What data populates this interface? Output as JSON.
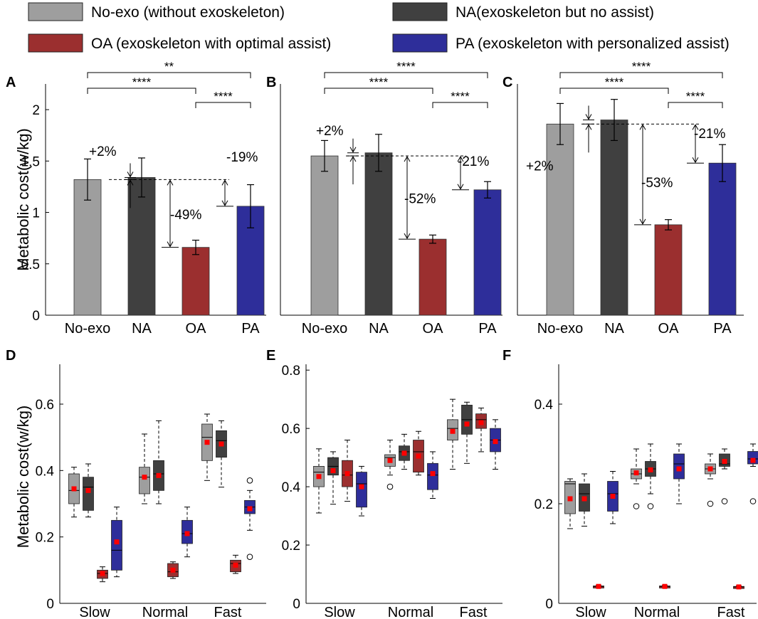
{
  "legend": [
    {
      "label": "No-exo (without exoskeleton)",
      "color": "#9e9e9e"
    },
    {
      "label": "NA(exoskeleton but no assist)",
      "color": "#404040"
    },
    {
      "label": "OA (exoskeleton with optimal assist)",
      "color": "#9b2f2f"
    },
    {
      "label": "PA (exoskeleton with personalized assist)",
      "color": "#2e2e9a"
    }
  ],
  "colors": {
    "noexo": "#9e9e9e",
    "na": "#404040",
    "oa": "#9b2f2f",
    "pa": "#2e2e9a",
    "mean_marker": "#ff0000"
  },
  "chart_data": [
    {
      "panel": "A",
      "type": "bar",
      "categories": [
        "No-exo",
        "NA",
        "OA",
        "PA"
      ],
      "values": [
        1.32,
        1.34,
        0.66,
        1.06
      ],
      "errors": [
        0.2,
        0.19,
        0.07,
        0.21
      ],
      "ylabel": "Metabolic cost(w/kg)",
      "ylim": [
        0,
        2.25
      ],
      "yticks": [
        0,
        0.5,
        1,
        1.5,
        2
      ],
      "significance": [
        {
          "from": 0,
          "to": 3,
          "label": "**"
        },
        {
          "from": 0,
          "to": 2,
          "label": "****"
        },
        {
          "from": 2,
          "to": 3,
          "label": "****"
        }
      ],
      "annotations": [
        {
          "bar": 1,
          "label": "+2%"
        },
        {
          "bar": 2,
          "label": "-49%"
        },
        {
          "bar": 3,
          "label": "-19%"
        }
      ]
    },
    {
      "panel": "B",
      "type": "bar",
      "categories": [
        "No-exo",
        "NA",
        "OA",
        "PA"
      ],
      "values": [
        1.55,
        1.58,
        0.74,
        1.22
      ],
      "errors": [
        0.15,
        0.18,
        0.04,
        0.08
      ],
      "ylabel": "",
      "ylim": [
        0,
        2.25
      ],
      "yticks": [],
      "significance": [
        {
          "from": 0,
          "to": 3,
          "label": "****"
        },
        {
          "from": 0,
          "to": 2,
          "label": "****"
        },
        {
          "from": 2,
          "to": 3,
          "label": "****"
        }
      ],
      "annotations": [
        {
          "bar": 1,
          "label": "+2%"
        },
        {
          "bar": 2,
          "label": "-52%"
        },
        {
          "bar": 3,
          "label": "-21%"
        }
      ]
    },
    {
      "panel": "C",
      "type": "bar",
      "categories": [
        "No-exo",
        "NA",
        "OA",
        "PA"
      ],
      "values": [
        1.86,
        1.9,
        0.88,
        1.48
      ],
      "errors": [
        0.2,
        0.2,
        0.05,
        0.18
      ],
      "ylabel": "",
      "ylim": [
        0,
        2.25
      ],
      "yticks": [],
      "significance": [
        {
          "from": 0,
          "to": 3,
          "label": "****"
        },
        {
          "from": 0,
          "to": 2,
          "label": "****"
        },
        {
          "from": 2,
          "to": 3,
          "label": "****"
        }
      ],
      "annotations": [
        {
          "bar": 1,
          "label": "+2%"
        },
        {
          "bar": 2,
          "label": "-53%"
        },
        {
          "bar": 3,
          "label": "-21%"
        }
      ]
    },
    {
      "panel": "D",
      "type": "box",
      "categories": [
        "Slow",
        "Normal",
        "Fast"
      ],
      "ylabel": "Metabolic cost(w/kg)",
      "ylim": [
        0,
        0.72
      ],
      "yticks": [
        0,
        0.2,
        0.4,
        0.6
      ],
      "series": [
        {
          "name": "No-exo",
          "groups": [
            {
              "min": 0.26,
              "q1": 0.3,
              "median": 0.34,
              "q3": 0.39,
              "max": 0.41,
              "mean": 0.345,
              "outliers": []
            },
            {
              "min": 0.3,
              "q1": 0.33,
              "median": 0.38,
              "q3": 0.41,
              "max": 0.51,
              "mean": 0.38,
              "outliers": []
            },
            {
              "min": 0.37,
              "q1": 0.43,
              "median": 0.5,
              "q3": 0.54,
              "max": 0.57,
              "mean": 0.485,
              "outliers": []
            }
          ]
        },
        {
          "name": "NA",
          "groups": [
            {
              "min": 0.26,
              "q1": 0.28,
              "median": 0.35,
              "q3": 0.38,
              "max": 0.42,
              "mean": 0.34,
              "outliers": []
            },
            {
              "min": 0.3,
              "q1": 0.34,
              "median": 0.39,
              "q3": 0.43,
              "max": 0.55,
              "mean": 0.385,
              "outliers": []
            },
            {
              "min": 0.35,
              "q1": 0.44,
              "median": 0.49,
              "q3": 0.52,
              "max": 0.55,
              "mean": 0.48,
              "outliers": []
            }
          ]
        },
        {
          "name": "OA",
          "groups": [
            {
              "min": 0.065,
              "q1": 0.075,
              "median": 0.09,
              "q3": 0.1,
              "max": 0.11,
              "mean": 0.09,
              "outliers": []
            },
            {
              "min": 0.075,
              "q1": 0.08,
              "median": 0.095,
              "q3": 0.12,
              "max": 0.125,
              "mean": 0.1,
              "outliers": []
            },
            {
              "min": 0.09,
              "q1": 0.095,
              "median": 0.12,
              "q3": 0.13,
              "max": 0.145,
              "mean": 0.115,
              "outliers": []
            }
          ]
        },
        {
          "name": "PA",
          "groups": [
            {
              "min": 0.08,
              "q1": 0.1,
              "median": 0.16,
              "q3": 0.25,
              "max": 0.29,
              "mean": 0.185,
              "outliers": []
            },
            {
              "min": 0.14,
              "q1": 0.18,
              "median": 0.21,
              "q3": 0.25,
              "max": 0.29,
              "mean": 0.21,
              "outliers": []
            },
            {
              "min": 0.22,
              "q1": 0.27,
              "median": 0.29,
              "q3": 0.31,
              "max": 0.34,
              "mean": 0.285,
              "outliers": [
                0.14,
                0.37
              ]
            }
          ]
        }
      ]
    },
    {
      "panel": "E",
      "type": "box",
      "categories": [
        "Slow",
        "Normal",
        "Fast"
      ],
      "ylabel": "",
      "ylim": [
        0,
        0.82
      ],
      "yticks": [
        0,
        0.2,
        0.4,
        0.6,
        0.8
      ],
      "series": [
        {
          "name": "No-exo",
          "groups": [
            {
              "min": 0.31,
              "q1": 0.4,
              "median": 0.45,
              "q3": 0.47,
              "max": 0.53,
              "mean": 0.435,
              "outliers": []
            },
            {
              "min": 0.44,
              "q1": 0.47,
              "median": 0.5,
              "q3": 0.51,
              "max": 0.56,
              "mean": 0.49,
              "outliers": [
                0.4
              ]
            },
            {
              "min": 0.46,
              "q1": 0.56,
              "median": 0.6,
              "q3": 0.63,
              "max": 0.7,
              "mean": 0.59,
              "outliers": []
            }
          ]
        },
        {
          "name": "NA",
          "groups": [
            {
              "min": 0.34,
              "q1": 0.44,
              "median": 0.47,
              "q3": 0.5,
              "max": 0.52,
              "mean": 0.455,
              "outliers": []
            },
            {
              "min": 0.46,
              "q1": 0.49,
              "median": 0.52,
              "q3": 0.54,
              "max": 0.58,
              "mean": 0.515,
              "outliers": []
            },
            {
              "min": 0.48,
              "q1": 0.58,
              "median": 0.63,
              "q3": 0.68,
              "max": 0.69,
              "mean": 0.615,
              "outliers": []
            }
          ]
        },
        {
          "name": "OA",
          "groups": [
            {
              "min": 0.35,
              "q1": 0.4,
              "median": 0.44,
              "q3": 0.49,
              "max": 0.56,
              "mean": 0.445,
              "outliers": []
            },
            {
              "min": 0.44,
              "q1": 0.45,
              "median": 0.52,
              "q3": 0.56,
              "max": 0.59,
              "mean": 0.505,
              "outliers": []
            },
            {
              "min": 0.52,
              "q1": 0.6,
              "median": 0.63,
              "q3": 0.65,
              "max": 0.67,
              "mean": 0.62,
              "outliers": []
            }
          ]
        },
        {
          "name": "PA",
          "groups": [
            {
              "min": 0.3,
              "q1": 0.33,
              "median": 0.41,
              "q3": 0.45,
              "max": 0.47,
              "mean": 0.4,
              "outliers": []
            },
            {
              "min": 0.36,
              "q1": 0.39,
              "median": 0.44,
              "q3": 0.48,
              "max": 0.52,
              "mean": 0.445,
              "outliers": []
            },
            {
              "min": 0.46,
              "q1": 0.52,
              "median": 0.56,
              "q3": 0.6,
              "max": 0.63,
              "mean": 0.555,
              "outliers": []
            }
          ]
        }
      ]
    },
    {
      "panel": "F",
      "type": "box",
      "categories": [
        "Slow",
        "Normal",
        "Fast"
      ],
      "ylabel": "",
      "ylim": [
        0,
        0.48
      ],
      "yticks": [
        0,
        0.2,
        0.4
      ],
      "series": [
        {
          "name": "No-exo",
          "groups": [
            {
              "min": 0.15,
              "q1": 0.18,
              "median": 0.24,
              "q3": 0.245,
              "max": 0.25,
              "mean": 0.21,
              "outliers": []
            },
            {
              "min": 0.24,
              "q1": 0.25,
              "median": 0.26,
              "q3": 0.27,
              "max": 0.31,
              "mean": 0.262,
              "outliers": [
                0.195
              ]
            },
            {
              "min": 0.25,
              "q1": 0.26,
              "median": 0.27,
              "q3": 0.28,
              "max": 0.3,
              "mean": 0.27,
              "outliers": [
                0.2
              ]
            }
          ]
        },
        {
          "name": "NA",
          "groups": [
            {
              "min": 0.155,
              "q1": 0.185,
              "median": 0.22,
              "q3": 0.24,
              "max": 0.26,
              "mean": 0.21,
              "outliers": []
            },
            {
              "min": 0.22,
              "q1": 0.255,
              "median": 0.27,
              "q3": 0.285,
              "max": 0.32,
              "mean": 0.268,
              "outliers": [
                0.195
              ]
            },
            {
              "min": 0.27,
              "q1": 0.275,
              "median": 0.28,
              "q3": 0.3,
              "max": 0.31,
              "mean": 0.285,
              "outliers": [
                0.205
              ]
            }
          ]
        },
        {
          "name": "OA",
          "groups": [
            {
              "min": 0.032,
              "q1": 0.033,
              "median": 0.034,
              "q3": 0.035,
              "max": 0.036,
              "mean": 0.034,
              "outliers": []
            },
            {
              "min": 0.032,
              "q1": 0.033,
              "median": 0.034,
              "q3": 0.035,
              "max": 0.036,
              "mean": 0.034,
              "outliers": []
            },
            {
              "min": 0.031,
              "q1": 0.032,
              "median": 0.033,
              "q3": 0.034,
              "max": 0.035,
              "mean": 0.033,
              "outliers": []
            }
          ]
        },
        {
          "name": "PA",
          "groups": [
            {
              "min": 0.16,
              "q1": 0.185,
              "median": 0.22,
              "q3": 0.245,
              "max": 0.265,
              "mean": 0.215,
              "outliers": []
            },
            {
              "min": 0.2,
              "q1": 0.25,
              "median": 0.28,
              "q3": 0.3,
              "max": 0.32,
              "mean": 0.27,
              "outliers": []
            },
            {
              "min": 0.275,
              "q1": 0.28,
              "median": 0.29,
              "q3": 0.305,
              "max": 0.32,
              "mean": 0.287,
              "outliers": [
                0.205
              ]
            }
          ]
        }
      ]
    }
  ]
}
